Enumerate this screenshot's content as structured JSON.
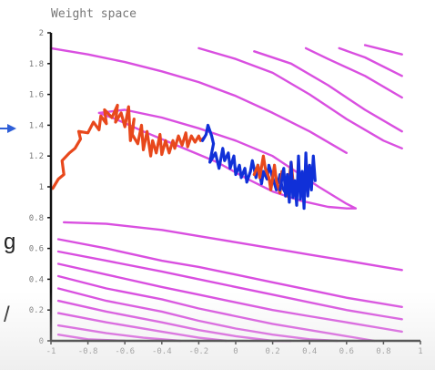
{
  "chart_data": {
    "type": "line",
    "title": "Weight space",
    "xlim": [
      -1,
      1
    ],
    "ylim": [
      0,
      2
    ],
    "x_ticks": [
      "-1",
      "-0.8",
      "-0.6",
      "-0.4",
      "-0.2",
      "0",
      "0.2",
      "0.4",
      "0.6",
      "0.8",
      "1"
    ],
    "y_ticks": [
      "0",
      "0.2",
      "0.4",
      "0.6",
      "0.8",
      "1",
      "1.2",
      "1.4",
      "1.6",
      "1.8",
      "2"
    ],
    "grid": false,
    "legend": "none",
    "colors": {
      "contours": "#d94fe0",
      "series_red": "#e8481c",
      "series_blue": "#1030d8",
      "axes": "#111111",
      "arrow": "#2f5fd8"
    },
    "series": [
      {
        "x": [
          -0.99,
          -0.96,
          -0.93,
          -0.94,
          -0.9,
          -0.87,
          -0.84,
          -0.85,
          -0.8,
          -0.77,
          -0.74,
          -0.73,
          -0.7,
          -0.71,
          -0.67,
          -0.64,
          -0.65,
          -0.62,
          -0.6,
          -0.58,
          -0.57,
          -0.55,
          -0.56,
          -0.53,
          -0.51,
          -0.5,
          -0.48,
          -0.46,
          -0.45,
          -0.43,
          -0.41,
          -0.4,
          -0.38,
          -0.36,
          -0.34,
          -0.33,
          -0.31,
          -0.29,
          -0.27,
          -0.26,
          -0.24,
          -0.22,
          -0.2,
          -0.19,
          -0.17
        ],
        "y": [
          0.99,
          1.05,
          1.08,
          1.17,
          1.22,
          1.25,
          1.31,
          1.36,
          1.35,
          1.42,
          1.37,
          1.46,
          1.41,
          1.5,
          1.45,
          1.53,
          1.42,
          1.48,
          1.39,
          1.52,
          1.3,
          1.44,
          1.34,
          1.28,
          1.4,
          1.24,
          1.36,
          1.2,
          1.3,
          1.22,
          1.34,
          1.21,
          1.3,
          1.22,
          1.3,
          1.25,
          1.33,
          1.27,
          1.35,
          1.26,
          1.33,
          1.29,
          1.33,
          1.3,
          1.32
        ]
      },
      {
        "x": [
          -0.18,
          -0.16,
          -0.15,
          -0.13,
          -0.12,
          -0.14,
          -0.11,
          -0.09,
          -0.07,
          -0.06,
          -0.04,
          -0.03,
          -0.01,
          0.0,
          0.02,
          0.03,
          0.05,
          0.06,
          0.08,
          0.09,
          0.11,
          0.12,
          0.14,
          0.15,
          0.17,
          0.18,
          0.2,
          0.22,
          0.24,
          0.25,
          0.27,
          0.28
        ],
        "y": [
          1.3,
          1.34,
          1.4,
          1.33,
          1.28,
          1.16,
          1.22,
          1.12,
          1.25,
          1.17,
          1.22,
          1.12,
          1.2,
          1.08,
          1.14,
          1.06,
          1.12,
          1.03,
          1.1,
          1.17,
          1.06,
          1.14,
          1.02,
          1.1,
          1.05,
          1.14,
          1.06,
          0.98,
          1.08,
          1.0,
          0.96,
          1.04
        ]
      },
      {
        "x": [
          0.1,
          0.12,
          0.13,
          0.15,
          0.16,
          0.18,
          0.19,
          0.21,
          0.22,
          0.24,
          0.25,
          0.27,
          0.28,
          0.3,
          0.31,
          0.33,
          0.34,
          0.36,
          0.37,
          0.38,
          0.4
        ],
        "y": [
          1.08,
          1.14,
          1.06,
          1.2,
          1.12,
          1.06,
          0.98,
          1.14,
          1.04,
          0.96,
          1.1,
          1.02,
          0.94,
          1.16,
          1.04,
          0.96,
          1.1,
          1.0,
          0.92,
          1.16,
          1.04
        ]
      },
      {
        "x": [
          0.24,
          0.26,
          0.27,
          0.28,
          0.29,
          0.3,
          0.31,
          0.32,
          0.33,
          0.34,
          0.35,
          0.36,
          0.37,
          0.38,
          0.39,
          0.4,
          0.41,
          0.42,
          0.43
        ],
        "y": [
          0.98,
          1.12,
          0.94,
          1.08,
          0.9,
          1.16,
          0.93,
          1.04,
          0.88,
          1.2,
          0.92,
          1.1,
          0.86,
          1.22,
          0.94,
          1.14,
          0.98,
          1.2,
          1.04
        ]
      }
    ],
    "contours": [
      {
        "x": [
          -1.0,
          -0.8,
          -0.6,
          -0.4,
          -0.2,
          0.0,
          0.2,
          0.4,
          0.6
        ],
        "y": [
          1.9,
          1.86,
          1.81,
          1.75,
          1.68,
          1.59,
          1.48,
          1.36,
          1.22
        ]
      },
      {
        "x": [
          -0.2,
          0.0,
          0.2,
          0.4,
          0.6,
          0.8,
          0.9
        ],
        "y": [
          1.9,
          1.83,
          1.74,
          1.6,
          1.44,
          1.3,
          1.25
        ]
      },
      {
        "x": [
          0.1,
          0.3,
          0.5,
          0.7,
          0.9
        ],
        "y": [
          1.88,
          1.8,
          1.66,
          1.5,
          1.36
        ]
      },
      {
        "x": [
          0.38,
          0.5,
          0.7,
          0.9
        ],
        "y": [
          1.9,
          1.83,
          1.72,
          1.58
        ]
      },
      {
        "x": [
          0.56,
          0.7,
          0.9
        ],
        "y": [
          1.9,
          1.84,
          1.72
        ]
      },
      {
        "x": [
          0.7,
          0.8,
          0.9
        ],
        "y": [
          1.92,
          1.89,
          1.86
        ]
      },
      {
        "x": [
          -0.74,
          -0.6,
          -0.4,
          -0.2,
          0.0,
          0.2,
          0.3,
          0.45,
          0.6,
          0.65,
          0.6,
          0.5,
          0.35,
          0.2,
          0.05,
          -0.1,
          -0.3,
          -0.5,
          -0.65,
          -0.74
        ],
        "y": [
          1.48,
          1.5,
          1.45,
          1.38,
          1.3,
          1.2,
          1.12,
          1.0,
          0.89,
          0.86,
          0.86,
          0.87,
          0.91,
          0.97,
          1.06,
          1.16,
          1.26,
          1.36,
          1.44,
          1.48
        ]
      },
      {
        "x": [
          -0.93,
          -0.7,
          -0.4,
          -0.2,
          0.0,
          0.2,
          0.4,
          0.6,
          0.8,
          0.9
        ],
        "y": [
          0.77,
          0.76,
          0.72,
          0.68,
          0.64,
          0.6,
          0.56,
          0.52,
          0.48,
          0.46
        ]
      },
      {
        "x": [
          -0.96,
          -0.7,
          -0.4,
          -0.2,
          0.0,
          0.2,
          0.4,
          0.6,
          0.8,
          0.9
        ],
        "y": [
          0.66,
          0.6,
          0.52,
          0.48,
          0.43,
          0.38,
          0.33,
          0.28,
          0.24,
          0.22
        ]
      },
      {
        "x": [
          -0.96,
          -0.7,
          -0.4,
          -0.2,
          0.0,
          0.2,
          0.4,
          0.6,
          0.8,
          0.9
        ],
        "y": [
          0.58,
          0.52,
          0.45,
          0.4,
          0.35,
          0.3,
          0.25,
          0.2,
          0.16,
          0.14
        ]
      },
      {
        "x": [
          -0.96,
          -0.7,
          -0.4,
          -0.2,
          0.0,
          0.2,
          0.4,
          0.6,
          0.8,
          0.9
        ],
        "y": [
          0.5,
          0.43,
          0.35,
          0.3,
          0.25,
          0.2,
          0.16,
          0.12,
          0.08,
          0.06
        ]
      },
      {
        "x": [
          -0.96,
          -0.7,
          -0.4,
          -0.2,
          0.0,
          0.2,
          0.4,
          0.6,
          0.75
        ],
        "y": [
          0.42,
          0.34,
          0.27,
          0.21,
          0.16,
          0.11,
          0.07,
          0.03,
          0.0
        ]
      },
      {
        "x": [
          -0.96,
          -0.7,
          -0.4,
          -0.2,
          0.0,
          0.2,
          0.4,
          0.55
        ],
        "y": [
          0.34,
          0.26,
          0.19,
          0.13,
          0.08,
          0.04,
          0.01,
          0.0
        ]
      },
      {
        "x": [
          -0.96,
          -0.7,
          -0.4,
          -0.2,
          0.0,
          0.2,
          0.3
        ],
        "y": [
          0.26,
          0.19,
          0.12,
          0.07,
          0.03,
          0.0,
          0.0
        ]
      },
      {
        "x": [
          -0.96,
          -0.7,
          -0.4,
          -0.2,
          -0.05
        ],
        "y": [
          0.18,
          0.12,
          0.06,
          0.02,
          0.0
        ]
      },
      {
        "x": [
          -0.96,
          -0.7,
          -0.5,
          -0.3
        ],
        "y": [
          0.1,
          0.05,
          0.02,
          0.0
        ]
      },
      {
        "x": [
          -0.96,
          -0.8,
          -0.6
        ],
        "y": [
          0.04,
          0.01,
          0.0
        ]
      }
    ]
  },
  "side_text": {
    "mark_1": "g",
    "mark_2": "/"
  }
}
